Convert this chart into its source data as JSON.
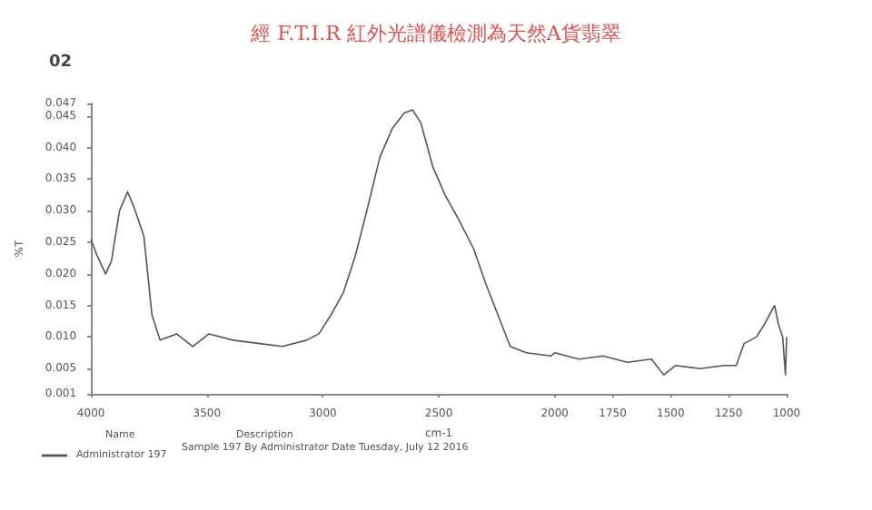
{
  "chart_data": {
    "type": "line",
    "title": "經 F.T.I.R 紅外光譜儀檢測為天然A貨翡翠",
    "xlabel": "cm-1",
    "ylabel": "%T",
    "annotations": [
      "02",
      "Name",
      "Description",
      "Sample 197 By Administrator Date Tuesday, July 12 2016"
    ],
    "x": [
      4000,
      3975,
      3937,
      3912,
      3877,
      3842,
      3814,
      3772,
      3737,
      3702,
      3631,
      3561,
      3491,
      3386,
      3280,
      3175,
      3070,
      3017,
      2965,
      2912,
      2859,
      2807,
      2754,
      2701,
      2649,
      2614,
      2578,
      2526,
      2473,
      2420,
      2350,
      2298,
      2245,
      2192,
      2122,
      2017,
      2000,
      1896,
      1791,
      1687,
      1583,
      1530,
      1478,
      1374,
      1270,
      1217,
      1183,
      1130,
      1096,
      1052,
      1035,
      1017,
      1005,
      1000
    ],
    "series": [
      {
        "name": "Administrator 197",
        "color": "#555555",
        "values": [
          0.0255,
          0.023,
          0.02,
          0.022,
          0.03,
          0.033,
          0.0305,
          0.026,
          0.0135,
          0.0095,
          0.0105,
          0.0085,
          0.0105,
          0.0095,
          0.009,
          0.0085,
          0.0095,
          0.0105,
          0.0135,
          0.017,
          0.023,
          0.0305,
          0.0385,
          0.043,
          0.0455,
          0.046,
          0.044,
          0.037,
          0.0325,
          0.029,
          0.024,
          0.0185,
          0.0135,
          0.0085,
          0.0075,
          0.007,
          0.0075,
          0.0065,
          0.007,
          0.006,
          0.0065,
          0.004,
          0.0055,
          0.005,
          0.0055,
          0.0055,
          0.009,
          0.01,
          0.012,
          0.015,
          0.012,
          0.01,
          0.004,
          0.01
        ]
      }
    ],
    "xlim": [
      4000,
      1000
    ],
    "xticks": [
      4000,
      3500,
      3000,
      2500,
      2000,
      1750,
      1500,
      1250,
      1000
    ],
    "ylim": [
      0.001,
      0.047
    ],
    "yticks": [
      {
        "value": 0.001,
        "label": "0.001"
      },
      {
        "value": 0.005,
        "label": "0.005"
      },
      {
        "value": 0.01,
        "label": "0.010"
      },
      {
        "value": 0.015,
        "label": "0.015"
      },
      {
        "value": 0.02,
        "label": "0.020"
      },
      {
        "value": 0.025,
        "label": "0.025"
      },
      {
        "value": 0.03,
        "label": "0.030"
      },
      {
        "value": 0.035,
        "label": "0.035"
      },
      {
        "value": 0.04,
        "label": "0.040"
      },
      {
        "value": 0.045,
        "label": "0.045"
      },
      {
        "value": 0.047,
        "label": "0.047"
      }
    ],
    "grid": false,
    "legend": "bottom left",
    "marker": "none",
    "line_style": "solid"
  }
}
